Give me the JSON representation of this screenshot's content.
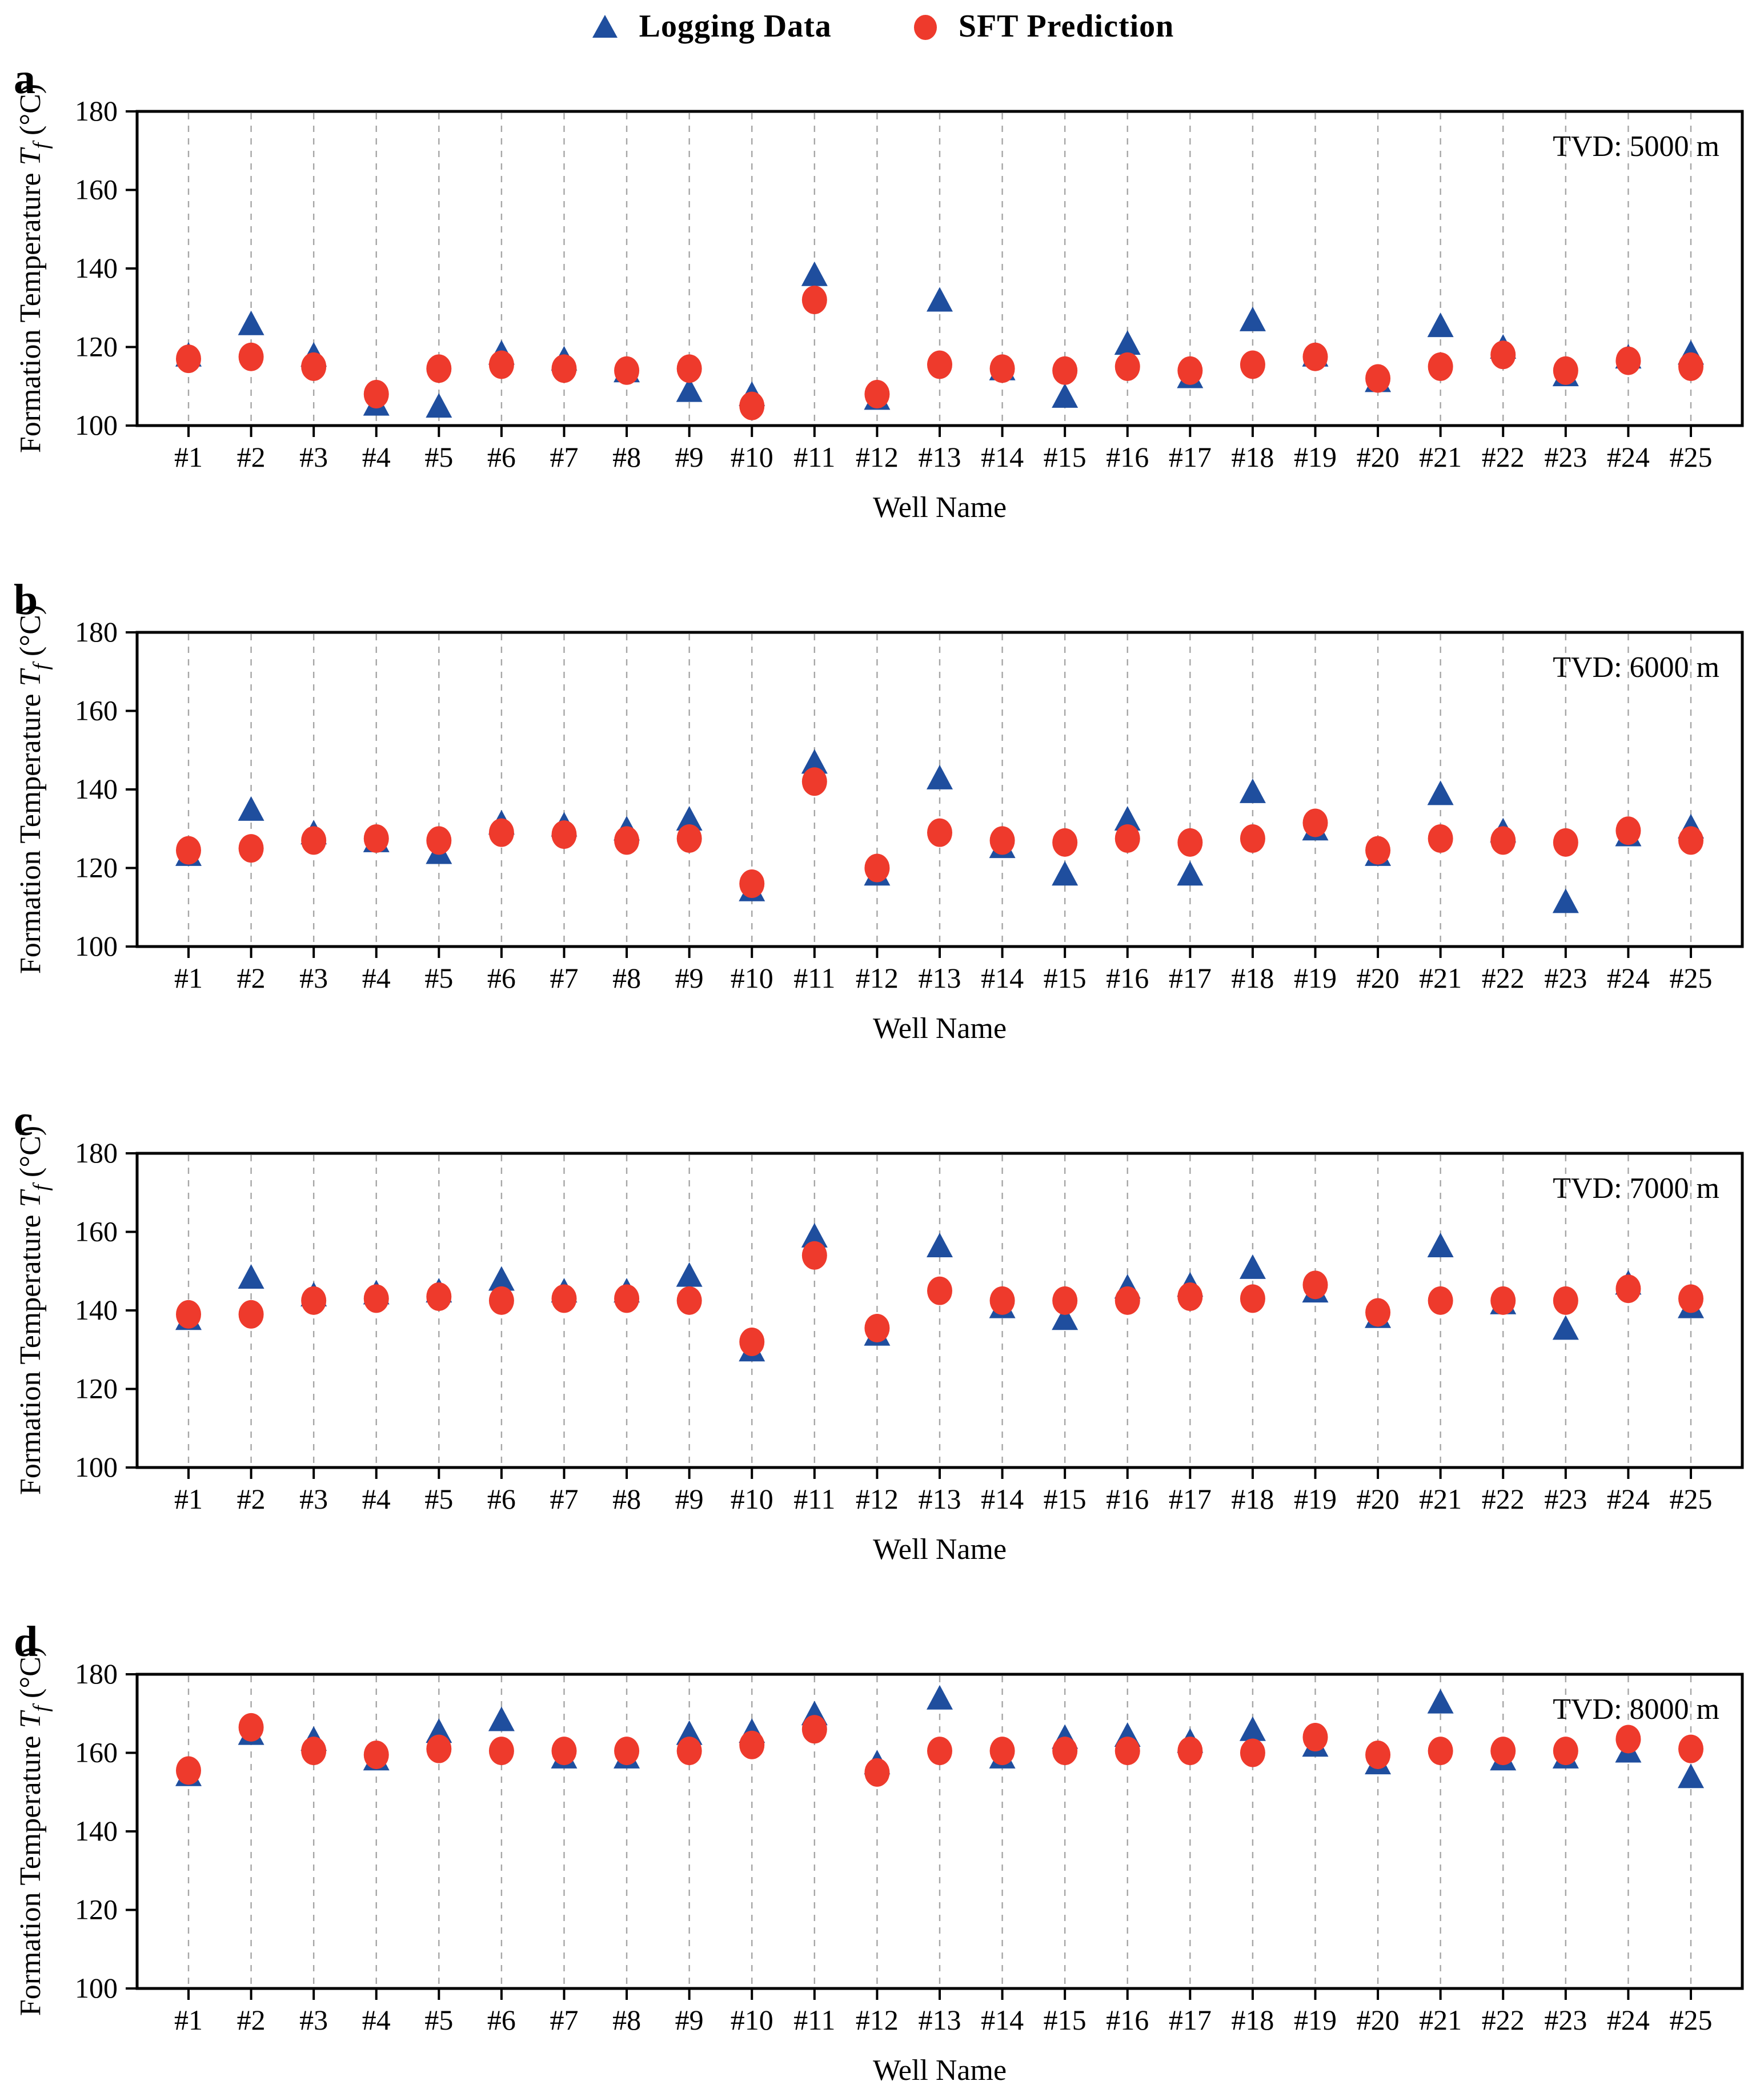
{
  "legend": {
    "items": [
      {
        "label": "Logging Data",
        "marker": "triangle",
        "color": "#1F4E9E"
      },
      {
        "label": "SFT Prediction",
        "marker": "circle",
        "color": "#EE3A2C"
      }
    ]
  },
  "style": {
    "logging_color": "#1F4E9E",
    "sft_color": "#EE3A2C",
    "frame_color": "#000000",
    "gridline_color": "#A6A6A6"
  },
  "chart_data": [
    {
      "type": "scatter",
      "panel_label": "a",
      "annotation": "TVD: 5000 m",
      "title": "",
      "xlabel": "Well Name",
      "ylabel_prefix": "Formation Temperature ",
      "ylabel_symbol": "T",
      "ylabel_sub": "f",
      "ylabel_suffix": " (°C)",
      "ylim": [
        100,
        180
      ],
      "yticks": [
        180,
        160,
        140,
        120,
        100
      ],
      "grid": "vertical-dashed",
      "legend_position": "top-outside",
      "categories": [
        "#1",
        "#2",
        "#3",
        "#4",
        "#5",
        "#6",
        "#7",
        "#8",
        "#9",
        "#10",
        "#11",
        "#12",
        "#13",
        "#14",
        "#15",
        "#16",
        "#17",
        "#18",
        "#19",
        "#20",
        "#21",
        "#22",
        "#23",
        "#24",
        "#25"
      ],
      "series": [
        {
          "name": "Logging Data",
          "values": [
            117.5,
            125.5,
            117.5,
            105,
            104.5,
            118,
            116.5,
            113.5,
            108.5,
            107.5,
            138,
            106.5,
            131.5,
            114,
            107,
            120.5,
            112,
            126.5,
            117.5,
            111,
            125,
            119.5,
            112.5,
            117,
            118
          ]
        },
        {
          "name": "SFT Prediction",
          "values": [
            117,
            117.5,
            115,
            108,
            114.5,
            115.5,
            114.5,
            114,
            114.5,
            105,
            132,
            108,
            115.5,
            114.5,
            114,
            115,
            114,
            115.5,
            117.5,
            112,
            115,
            118,
            114,
            116.5,
            115
          ]
        }
      ]
    },
    {
      "type": "scatter",
      "panel_label": "b",
      "annotation": "TVD: 6000 m",
      "title": "",
      "xlabel": "Well Name",
      "ylabel_prefix": "Formation Temperature ",
      "ylabel_symbol": "T",
      "ylabel_sub": "f",
      "ylabel_suffix": " (°C)",
      "ylim": [
        100,
        180
      ],
      "yticks": [
        180,
        160,
        140,
        120,
        100
      ],
      "grid": "vertical-dashed",
      "legend_position": "none",
      "categories": [
        "#1",
        "#2",
        "#3",
        "#4",
        "#5",
        "#6",
        "#7",
        "#8",
        "#9",
        "#10",
        "#11",
        "#12",
        "#13",
        "#14",
        "#15",
        "#16",
        "#17",
        "#18",
        "#19",
        "#20",
        "#21",
        "#22",
        "#23",
        "#24",
        "#25"
      ],
      "series": [
        {
          "name": "Logging Data",
          "values": [
            123,
            134.5,
            128.5,
            126.5,
            123.5,
            131,
            130.5,
            129.5,
            132,
            114,
            146.5,
            118,
            142.5,
            125,
            118,
            132,
            118,
            139,
            129.5,
            123,
            138.5,
            129,
            111,
            128,
            130
          ]
        },
        {
          "name": "SFT Prediction",
          "values": [
            124.5,
            125,
            127,
            127.5,
            127,
            129,
            128.5,
            127,
            127.5,
            116,
            142,
            120,
            129,
            127,
            126.5,
            127.5,
            126.5,
            127.5,
            131.5,
            124.5,
            127.5,
            127,
            126.5,
            129.5,
            127
          ]
        }
      ]
    },
    {
      "type": "scatter",
      "panel_label": "c",
      "annotation": "TVD: 7000 m",
      "title": "",
      "xlabel": "Well Name",
      "ylabel_prefix": "Formation Temperature ",
      "ylabel_symbol": "T",
      "ylabel_sub": "f",
      "ylabel_suffix": " (°C)",
      "ylim": [
        100,
        180
      ],
      "yticks": [
        180,
        160,
        140,
        120,
        100
      ],
      "grid": "vertical-dashed",
      "legend_position": "none",
      "categories": [
        "#1",
        "#2",
        "#3",
        "#4",
        "#5",
        "#6",
        "#7",
        "#8",
        "#9",
        "#10",
        "#11",
        "#12",
        "#13",
        "#14",
        "#15",
        "#16",
        "#17",
        "#18",
        "#19",
        "#20",
        "#21",
        "#22",
        "#23",
        "#24",
        "#25"
      ],
      "series": [
        {
          "name": "Logging Data",
          "values": [
            137.5,
            148,
            143.5,
            144,
            144.5,
            147.5,
            144.5,
            144.5,
            148.5,
            129.5,
            158.5,
            133.5,
            156,
            140.5,
            137.5,
            145.5,
            146,
            150.5,
            144.5,
            138,
            156,
            141.5,
            135,
            146.5,
            140.5
          ]
        },
        {
          "name": "SFT Prediction",
          "values": [
            139,
            139,
            142.5,
            143,
            143.5,
            142.5,
            143,
            143,
            142.5,
            132,
            154,
            135.5,
            145,
            142.5,
            142.5,
            142.5,
            143.5,
            143,
            146.5,
            139.5,
            142.5,
            142.5,
            142.5,
            145.5,
            143
          ]
        }
      ]
    },
    {
      "type": "scatter",
      "panel_label": "d",
      "annotation": "TVD: 8000 m",
      "title": "",
      "xlabel": "Well Name",
      "ylabel_prefix": "Formation Temperature ",
      "ylabel_symbol": "T",
      "ylabel_sub": "f",
      "ylabel_suffix": " (°C)",
      "ylim": [
        100,
        180
      ],
      "yticks": [
        180,
        160,
        140,
        120,
        100
      ],
      "grid": "vertical-dashed",
      "legend_position": "none",
      "categories": [
        "#1",
        "#2",
        "#3",
        "#4",
        "#5",
        "#6",
        "#7",
        "#8",
        "#9",
        "#10",
        "#11",
        "#12",
        "#13",
        "#14",
        "#15",
        "#16",
        "#17",
        "#18",
        "#19",
        "#20",
        "#21",
        "#22",
        "#23",
        "#24",
        "#25"
      ],
      "series": [
        {
          "name": "Logging Data",
          "values": [
            154,
            164.5,
            163,
            158,
            165,
            168,
            158.5,
            158.5,
            164.5,
            165,
            169.5,
            157,
            173.5,
            158.5,
            163.5,
            164,
            162.5,
            165.5,
            161.5,
            157,
            172.5,
            158,
            158.5,
            160,
            153.5
          ]
        },
        {
          "name": "SFT Prediction",
          "values": [
            155.5,
            166.5,
            160.5,
            159.5,
            161,
            160.5,
            160.5,
            160.5,
            160.5,
            162,
            166,
            155,
            160.5,
            160.5,
            160.5,
            160.5,
            160.5,
            160,
            164,
            159.5,
            160.5,
            160.5,
            160.5,
            163.5,
            161
          ]
        }
      ]
    }
  ]
}
